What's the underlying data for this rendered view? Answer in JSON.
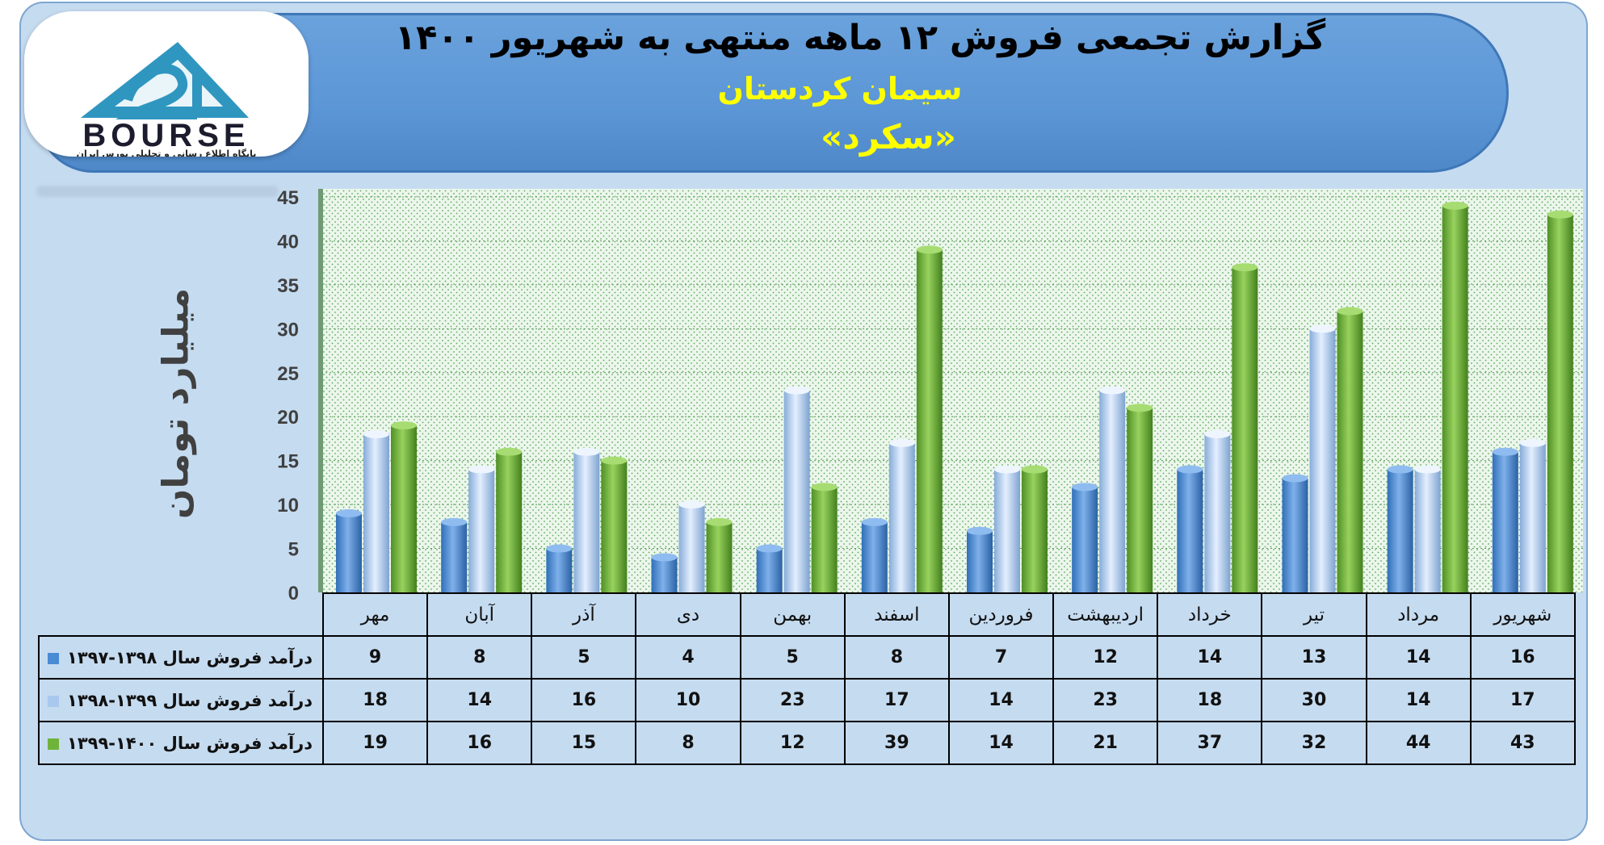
{
  "header": {
    "title": "گزارش تجمعی فروش ۱۲ ماهه منتهی به شهریور ۱۴۰۰",
    "company": "سیمان کردستان",
    "symbol": "«سکرد»"
  },
  "logo": {
    "wordmark": "BOURSE",
    "tagline": "پایگاه اطلاع رسانی و تحلیلی بورس ایران"
  },
  "colors": {
    "series1": "#4a8bd4",
    "series2": "#a9c8ee",
    "series3": "#6fb33b",
    "accent_text": "#ffff00"
  },
  "chart_data": {
    "type": "bar",
    "ylabel": "میلیارد تومان",
    "ylim": [
      0,
      45
    ],
    "yticks": [
      0,
      5,
      10,
      15,
      20,
      25,
      30,
      35,
      40,
      45
    ],
    "grid": true,
    "categories": [
      "مهر",
      "آبان",
      "آذر",
      "دی",
      "بهمن",
      "اسفند",
      "فروردین",
      "اردیبهشت",
      "خرداد",
      "تیر",
      "مرداد",
      "شهریور"
    ],
    "series": [
      {
        "name": "درآمد فروش سال ۱۳۹۸-۱۳۹۷",
        "color": "#4a8bd4",
        "values": [
          9,
          8,
          5,
          4,
          5,
          8,
          7,
          12,
          14,
          13,
          14,
          16
        ]
      },
      {
        "name": "درآمد فروش سال ۱۳۹۹-۱۳۹۸",
        "color": "#a9c8ee",
        "values": [
          18,
          14,
          16,
          10,
          23,
          17,
          14,
          23,
          18,
          30,
          14,
          17
        ]
      },
      {
        "name": "درآمد فروش سال ۱۴۰۰-۱۳۹۹",
        "color": "#6fb33b",
        "values": [
          19,
          16,
          15,
          8,
          12,
          39,
          14,
          21,
          37,
          32,
          44,
          43
        ]
      }
    ]
  }
}
